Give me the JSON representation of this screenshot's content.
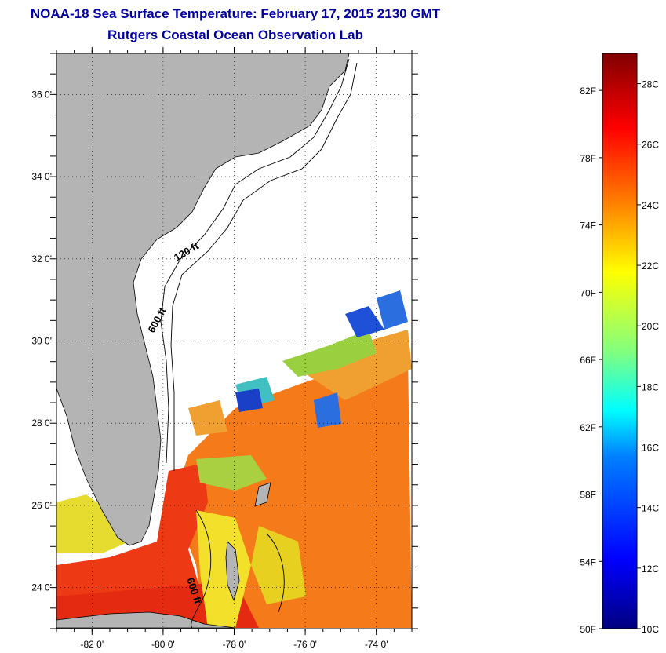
{
  "header": {
    "title": "NOAA-18 Sea Surface Temperature:  February 17, 2015 2130 GMT",
    "subtitle": "Rutgers Coastal Ocean Observation Lab"
  },
  "map": {
    "lon_range": [
      -83,
      -73
    ],
    "lat_range": [
      23,
      37
    ],
    "x_ticks": [
      {
        "value": -82,
        "label": "-82 0'"
      },
      {
        "value": -80,
        "label": "-80 0'"
      },
      {
        "value": -78,
        "label": "-78 0'"
      },
      {
        "value": -76,
        "label": "-76 0'"
      },
      {
        "value": -74,
        "label": "-74 0'"
      }
    ],
    "y_ticks": [
      {
        "value": 24,
        "label": "24 0'"
      },
      {
        "value": 26,
        "label": "26 0'"
      },
      {
        "value": 28,
        "label": "28 0'"
      },
      {
        "value": 30,
        "label": "30 0'"
      },
      {
        "value": 32,
        "label": "32 0'"
      },
      {
        "value": 34,
        "label": "34 0'"
      },
      {
        "value": 36,
        "label": "36 0'"
      }
    ],
    "contour_labels": {
      "c120": "120 ft",
      "c600a": "600 ft",
      "c600b": "600 ft"
    },
    "colors": {
      "land": "#b4b4b4",
      "ocean_nodata": "#ffffff",
      "grid": "#000000"
    }
  },
  "colorbar": {
    "range_c": [
      10,
      29
    ],
    "celsius_labels": [
      "10C",
      "12C",
      "14C",
      "16C",
      "18C",
      "20C",
      "22C",
      "24C",
      "26C",
      "28C"
    ],
    "fahrenheit_labels": [
      "50F",
      "54F",
      "58F",
      "62F",
      "66F",
      "70F",
      "74F",
      "78F",
      "82F"
    ],
    "colors": [
      "#000080",
      "#0000ff",
      "#0080ff",
      "#00ffff",
      "#80ff80",
      "#ffff00",
      "#ff8000",
      "#ff0000",
      "#800000"
    ]
  }
}
